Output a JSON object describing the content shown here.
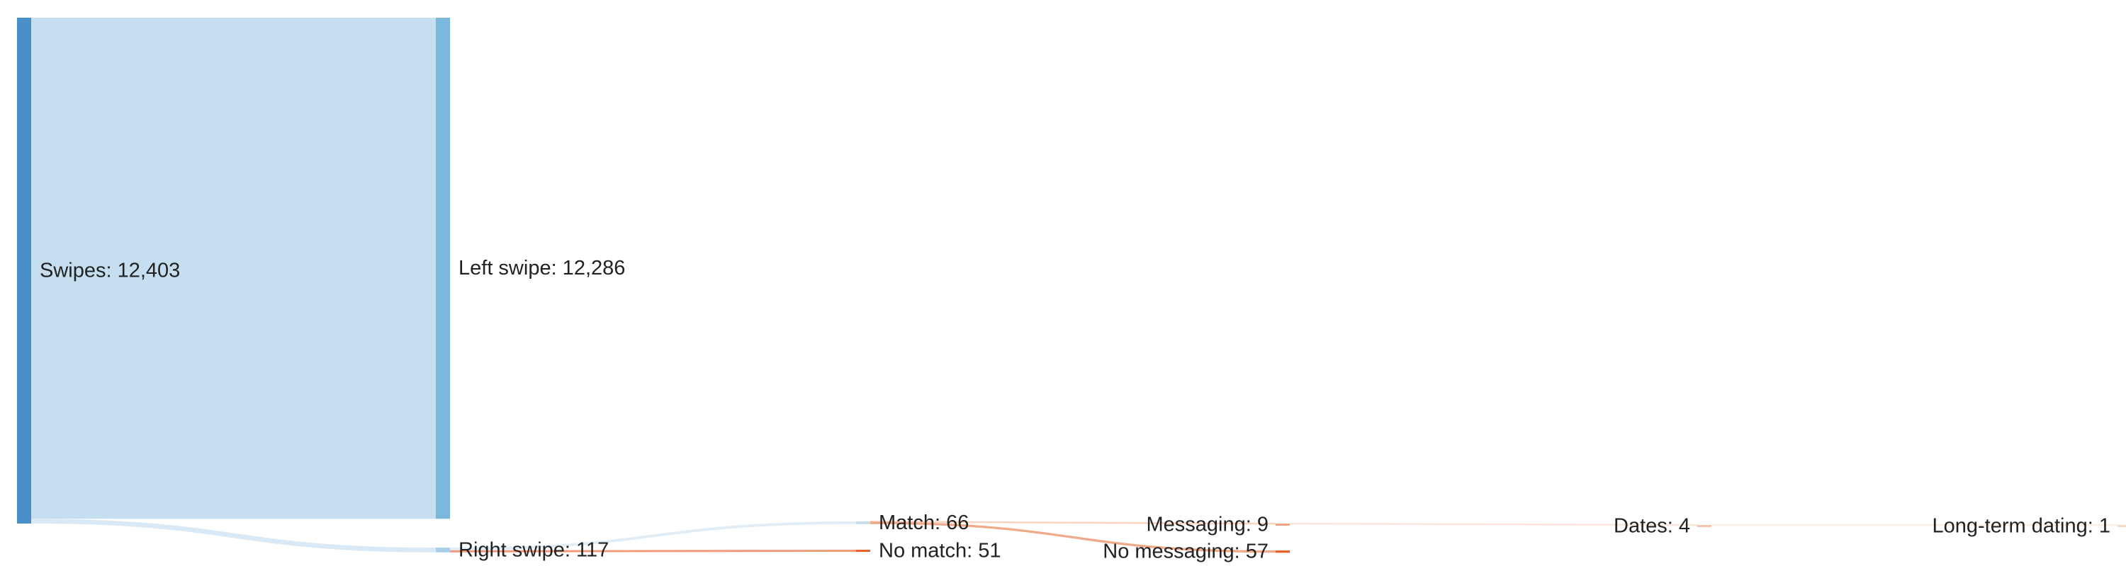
{
  "chart_data": {
    "type": "sankey",
    "nodes": [
      {
        "id": "swipes",
        "label": "Swipes: 12,403",
        "value": 12403,
        "color": "#4a8fc8"
      },
      {
        "id": "left",
        "label": "Left swipe: 12,286",
        "value": 12286,
        "color": "#7ab8de"
      },
      {
        "id": "right",
        "label": "Right swipe: 117",
        "value": 117,
        "color": "#a9cfe8"
      },
      {
        "id": "match",
        "label": "Match: 66",
        "value": 66,
        "color": "#c5dcee"
      },
      {
        "id": "nomatch",
        "label": "No match: 51",
        "value": 51,
        "color": "#e8622a"
      },
      {
        "id": "messaging",
        "label": "Messaging: 9",
        "value": 9,
        "color": "#f4a27c"
      },
      {
        "id": "nomessaging",
        "label": "No messaging: 57",
        "value": 57,
        "color": "#e8622a"
      },
      {
        "id": "dates",
        "label": "Dates: 4",
        "value": 4,
        "color": "#f6c4aa"
      },
      {
        "id": "longterm",
        "label": "Long-term dating: 1",
        "value": 1,
        "color": "#f9d8c6"
      }
    ],
    "links": [
      {
        "source": "swipes",
        "target": "left",
        "value": 12286,
        "color": "#c5dff1"
      },
      {
        "source": "swipes",
        "target": "right",
        "value": 117,
        "color": "#d2e6f4"
      },
      {
        "source": "right",
        "target": "match",
        "value": 66,
        "color": "#dbeaf6"
      },
      {
        "source": "right",
        "target": "nomatch",
        "value": 51,
        "color": "#ee8a62"
      },
      {
        "source": "match",
        "target": "messaging",
        "value": 9,
        "color": "#f8cdb6"
      },
      {
        "source": "match",
        "target": "nomessaging",
        "value": 57,
        "color": "#ec9b76"
      },
      {
        "source": "messaging",
        "target": "dates",
        "value": 4,
        "color": "#fbe0d2"
      },
      {
        "source": "dates",
        "target": "longterm",
        "value": 1,
        "color": "#fceae0"
      }
    ]
  }
}
